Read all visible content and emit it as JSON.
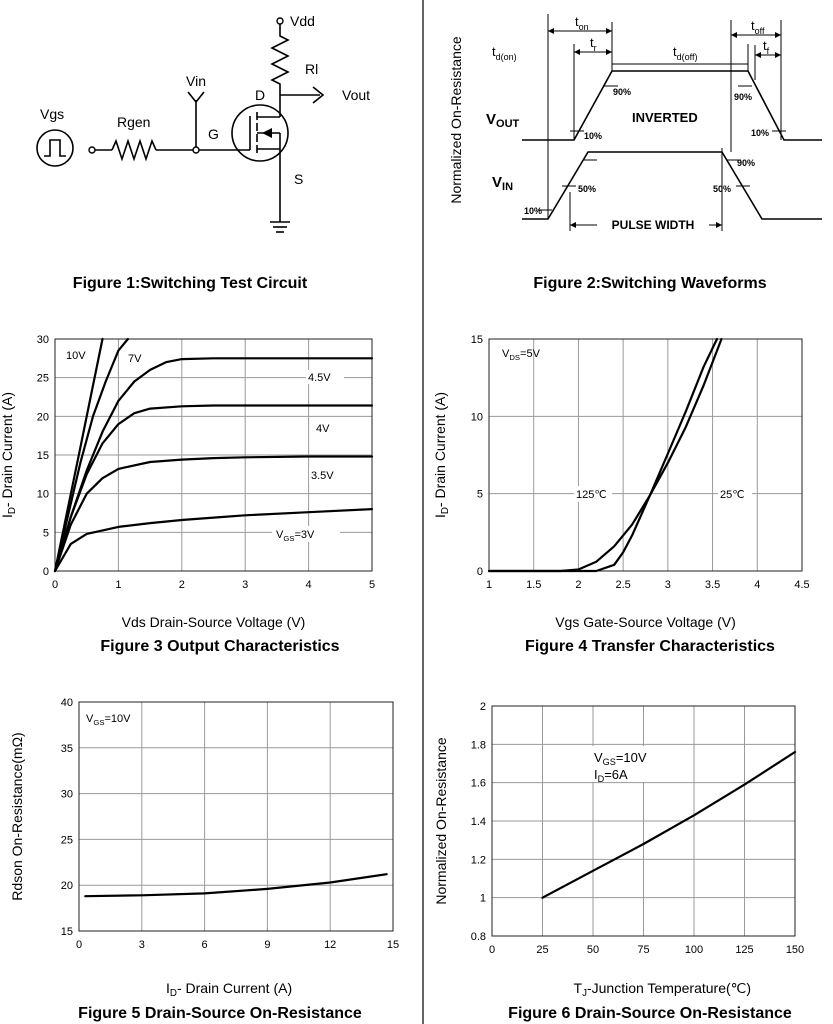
{
  "figure1": {
    "caption": "Figure 1:Switching Test Circuit",
    "labels": {
      "vdd": "Vdd",
      "rl": "Rl",
      "vout": "Vout",
      "vin": "Vin",
      "d": "D",
      "g": "G",
      "s": "S",
      "rgen": "Rgen",
      "vgs": "Vgs"
    }
  },
  "figure2": {
    "caption": "Figure 2:Switching Waveforms",
    "labels": {
      "yaxis": "Normalized On-Resistance",
      "ton_main": "t",
      "ton_sub": "on",
      "tr_main": "t",
      "tr_sub": "r",
      "tdon_main": "t",
      "tdon_sub": "d(on)",
      "tdoff_main": "t",
      "tdoff_sub": "d(off)",
      "toff_main": "t",
      "toff_sub": "off",
      "tf_main": "t",
      "tf_sub": "f",
      "vout_main": "V",
      "vout_sub": "OUT",
      "vin_main": "V",
      "vin_sub": "IN",
      "inverted": "INVERTED",
      "pulse": "PULSE WIDTH",
      "p90a": "90%",
      "p90b": "90%",
      "p90c": "90%",
      "p10a": "10%",
      "p10b": "10%",
      "p10c": "10%",
      "p50a": "50%",
      "p50b": "50%"
    }
  },
  "chart_data": [
    {
      "type": "line",
      "caption": "Figure 3 Output Characteristics",
      "xlabel": "Vds Drain-Source Voltage (V)",
      "ylabel_main": "I",
      "ylabel_sub": "D",
      "ylabel_rest": "- Drain Current (A)",
      "xlim": [
        0,
        5
      ],
      "ylim": [
        0,
        30
      ],
      "xticks": [
        "0",
        "1",
        "2",
        "3",
        "4",
        "5"
      ],
      "yticks": [
        "0",
        "5",
        "10",
        "15",
        "20",
        "25",
        "30"
      ],
      "grid": true,
      "series": [
        {
          "name": "10V",
          "label": "10V",
          "x": [
            0,
            0.2,
            0.4,
            0.6,
            0.75
          ],
          "y": [
            0,
            8,
            16,
            24,
            30
          ]
        },
        {
          "name": "7V",
          "label": "7V",
          "x": [
            0,
            0.2,
            0.4,
            0.6,
            0.8,
            1.0,
            1.15
          ],
          "y": [
            0,
            7,
            14,
            20,
            24.5,
            28.5,
            30
          ]
        },
        {
          "name": "4.5V",
          "label": "4.5V",
          "x": [
            0,
            0.25,
            0.5,
            0.75,
            1.0,
            1.25,
            1.5,
            1.75,
            2.0,
            2.5,
            3,
            4,
            5
          ],
          "y": [
            0,
            7,
            13,
            18,
            22,
            24.5,
            26,
            27,
            27.4,
            27.5,
            27.5,
            27.5,
            27.5
          ]
        },
        {
          "name": "4V",
          "label": "4V",
          "x": [
            0,
            0.25,
            0.5,
            0.75,
            1.0,
            1.25,
            1.5,
            2.0,
            2.5,
            3,
            4,
            5
          ],
          "y": [
            0,
            7,
            12.5,
            16.5,
            19,
            20.4,
            21,
            21.3,
            21.4,
            21.4,
            21.4,
            21.4
          ]
        },
        {
          "name": "3.5V",
          "label": "3.5V",
          "x": [
            0,
            0.25,
            0.5,
            0.75,
            1.0,
            1.5,
            2.0,
            2.5,
            3,
            4,
            5
          ],
          "y": [
            0,
            6,
            10,
            12,
            13.2,
            14.1,
            14.4,
            14.6,
            14.7,
            14.8,
            14.8
          ]
        },
        {
          "name": "3V",
          "label_main": "V",
          "label_sub": "GS",
          "label_rest": "=3V",
          "x": [
            0,
            0.25,
            0.5,
            1.0,
            1.5,
            2.0,
            2.5,
            3,
            4,
            5
          ],
          "y": [
            0,
            3.5,
            4.8,
            5.7,
            6.2,
            6.6,
            6.9,
            7.2,
            7.6,
            8.0
          ]
        }
      ]
    },
    {
      "type": "line",
      "caption": "Figure 4 Transfer Characteristics",
      "xlabel": "Vgs Gate-Source Voltage (V)",
      "ylabel_main": "I",
      "ylabel_sub": "D",
      "ylabel_rest": "- Drain Current (A)",
      "xlim": [
        1,
        4.5
      ],
      "ylim": [
        0,
        15
      ],
      "xticks": [
        "1",
        "1.5",
        "2",
        "2.5",
        "3",
        "3.5",
        "4",
        "4.5"
      ],
      "yticks": [
        "0",
        "5",
        "10",
        "15"
      ],
      "grid": true,
      "annotation_main": "V",
      "annotation_sub": "DS",
      "annotation_rest": "=5V",
      "series": [
        {
          "name": "125℃",
          "label": "125℃",
          "x": [
            1.0,
            1.8,
            2.0,
            2.2,
            2.4,
            2.6,
            2.8,
            3.0,
            3.2,
            3.4,
            3.6
          ],
          "y": [
            0,
            0,
            0.1,
            0.6,
            1.6,
            3.0,
            4.9,
            7.0,
            9.3,
            12.0,
            15.0
          ]
        },
        {
          "name": "25℃",
          "label": "25℃",
          "x": [
            1.0,
            2.2,
            2.4,
            2.5,
            2.6,
            2.8,
            3.0,
            3.2,
            3.4,
            3.55
          ],
          "y": [
            0,
            0,
            0.4,
            1.2,
            2.3,
            4.9,
            7.6,
            10.3,
            13.2,
            15.0
          ]
        }
      ]
    },
    {
      "type": "line",
      "caption": "Figure 5 Drain-Source On-Resistance",
      "xlabel_main": "I",
      "xlabel_sub": "D",
      "xlabel_rest": "- Drain Current (A)",
      "ylabel": "Rdson On-Resistance(mΩ)",
      "xlim": [
        0,
        15
      ],
      "ylim": [
        15,
        40
      ],
      "xticks": [
        "0",
        "3",
        "6",
        "9",
        "12",
        "15"
      ],
      "yticks": [
        "15",
        "20",
        "25",
        "30",
        "35",
        "40"
      ],
      "grid": true,
      "annotation_main": "V",
      "annotation_sub": "GS",
      "annotation_rest": "=10V",
      "series": [
        {
          "x": [
            0.3,
            3,
            6,
            9,
            12,
            14.7
          ],
          "y": [
            18.8,
            18.9,
            19.1,
            19.6,
            20.3,
            21.2
          ]
        }
      ]
    },
    {
      "type": "line",
      "caption": "Figure 6 Drain-Source On-Resistance",
      "xlabel_main": "T",
      "xlabel_sub": "J",
      "xlabel_rest": "-Junction Temperature(℃)",
      "ylabel": "Normalized On-Resistance",
      "xlim": [
        0,
        150
      ],
      "ylim": [
        0.8,
        2
      ],
      "xticks": [
        "0",
        "25",
        "50",
        "75",
        "100",
        "125",
        "150"
      ],
      "yticks": [
        "0.8",
        "1",
        "1.2",
        "1.4",
        "1.6",
        "1.8",
        "2"
      ],
      "grid": true,
      "annotation1_main": "V",
      "annotation1_sub": "GS",
      "annotation1_rest": "=10V",
      "annotation2_main": "I",
      "annotation2_sub": "D",
      "annotation2_rest": "=6A",
      "series": [
        {
          "x": [
            25,
            50,
            75,
            100,
            125,
            150
          ],
          "y": [
            1.0,
            1.14,
            1.28,
            1.43,
            1.59,
            1.76
          ]
        }
      ]
    }
  ]
}
